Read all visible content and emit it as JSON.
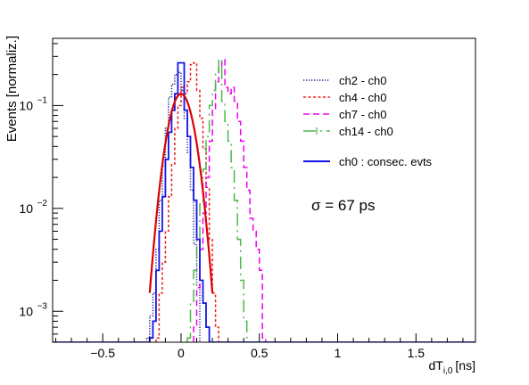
{
  "chart_data": {
    "type": "line",
    "xlabel": "dT",
    "xlabel_sub": "i,0",
    "xlabel_unit": "[ns]",
    "ylabel": "Events [normaliz.]",
    "xlim": [
      -0.82,
      1.88
    ],
    "ylim": [
      0.0005,
      0.45
    ],
    "yscale": "log",
    "x_ticks": [
      -0.5,
      0,
      0.5,
      1,
      1.5
    ],
    "x_tick_labels": [
      "−0.5",
      "0",
      "0.5",
      "1",
      "1.5"
    ],
    "y_ticks": [
      0.001,
      0.01,
      0.1
    ],
    "y_tick_labels": [
      {
        "base": "10",
        "exp": "−3"
      },
      {
        "base": "10",
        "exp": "−2"
      },
      {
        "base": "10",
        "exp": "−1"
      }
    ],
    "grid": false,
    "legend_position": "top-right",
    "annotation": "σ = 67 ps",
    "series": [
      {
        "name": "ch2 - ch0",
        "color": "#1a1a8c",
        "dash": "1.2,1.8",
        "style": "step",
        "bin_width": 0.02,
        "bins": [
          [
            -0.22,
            0.00055
          ],
          [
            -0.2,
            0.0009
          ],
          [
            -0.18,
            0.0015
          ],
          [
            -0.16,
            0.004
          ],
          [
            -0.14,
            0.012
          ],
          [
            -0.12,
            0.026
          ],
          [
            -0.1,
            0.06
          ],
          [
            -0.08,
            0.12
          ],
          [
            -0.06,
            0.16
          ],
          [
            -0.04,
            0.2
          ],
          [
            -0.02,
            0.21
          ],
          [
            0.0,
            0.14
          ],
          [
            0.02,
            0.075
          ],
          [
            0.04,
            0.035
          ],
          [
            0.06,
            0.015
          ],
          [
            0.08,
            0.0045
          ],
          [
            0.1,
            0.0018
          ]
        ]
      },
      {
        "name": "ch4 - ch0",
        "color": "#ee1b1b",
        "dash": "3,2.5",
        "style": "step",
        "bin_width": 0.02,
        "bins": [
          [
            -0.16,
            0.00055
          ],
          [
            -0.14,
            0.0015
          ],
          [
            -0.12,
            0.003
          ],
          [
            -0.1,
            0.006
          ],
          [
            -0.08,
            0.013
          ],
          [
            -0.06,
            0.027
          ],
          [
            -0.04,
            0.06
          ],
          [
            -0.02,
            0.1
          ],
          [
            0.0,
            0.15
          ],
          [
            0.02,
            0.13
          ],
          [
            0.04,
            0.17
          ],
          [
            0.06,
            0.25
          ],
          [
            0.08,
            0.26
          ],
          [
            0.1,
            0.14
          ],
          [
            0.12,
            0.075
          ],
          [
            0.14,
            0.038
          ],
          [
            0.16,
            0.016
          ],
          [
            0.18,
            0.005
          ],
          [
            0.2,
            0.0015
          ],
          [
            0.22,
            0.0007
          ]
        ]
      },
      {
        "name": "ch7 - ch0",
        "color": "#ee00ee",
        "dash": "7,4",
        "style": "step",
        "bin_width": 0.02,
        "bins": [
          [
            0.08,
            0.0007
          ],
          [
            0.1,
            0.0017
          ],
          [
            0.12,
            0.004
          ],
          [
            0.14,
            0.009
          ],
          [
            0.16,
            0.02
          ],
          [
            0.18,
            0.045
          ],
          [
            0.2,
            0.09
          ],
          [
            0.22,
            0.17
          ],
          [
            0.24,
            0.24
          ],
          [
            0.26,
            0.28
          ],
          [
            0.28,
            0.15
          ],
          [
            0.3,
            0.13
          ],
          [
            0.32,
            0.15
          ],
          [
            0.34,
            0.11
          ],
          [
            0.36,
            0.07
          ],
          [
            0.38,
            0.045
          ],
          [
            0.4,
            0.025
          ],
          [
            0.42,
            0.015
          ],
          [
            0.44,
            0.008
          ],
          [
            0.46,
            0.006
          ],
          [
            0.48,
            0.004
          ],
          [
            0.5,
            0.0025
          ],
          [
            0.52,
            0.00055
          ]
        ]
      },
      {
        "name": "ch14 - ch0",
        "color": "#4bb84b",
        "dash": "14,5,2,5",
        "style": "step",
        "bin_width": 0.02,
        "bins": [
          [
            0.04,
            0.00055
          ],
          [
            0.06,
            0.0012
          ],
          [
            0.08,
            0.0025
          ],
          [
            0.1,
            0.005
          ],
          [
            0.12,
            0.011
          ],
          [
            0.14,
            0.024
          ],
          [
            0.16,
            0.05
          ],
          [
            0.18,
            0.1
          ],
          [
            0.2,
            0.14
          ],
          [
            0.22,
            0.21
          ],
          [
            0.24,
            0.28
          ],
          [
            0.26,
            0.11
          ],
          [
            0.28,
            0.07
          ],
          [
            0.3,
            0.045
          ],
          [
            0.32,
            0.025
          ],
          [
            0.34,
            0.012
          ],
          [
            0.36,
            0.005
          ],
          [
            0.38,
            0.002
          ],
          [
            0.4,
            0.0008
          ]
        ]
      },
      {
        "name": "ch0 : consec. evts",
        "color": "#1313e6",
        "dash": "",
        "style": "step",
        "bin_width": 0.02,
        "bins": [
          [
            -0.82,
            0.0005
          ],
          [
            -0.2,
            0.00055
          ],
          [
            -0.18,
            0.0008
          ],
          [
            -0.16,
            0.0025
          ],
          [
            -0.14,
            0.006
          ],
          [
            -0.12,
            0.013
          ],
          [
            -0.1,
            0.03
          ],
          [
            -0.08,
            0.055
          ],
          [
            -0.06,
            0.09
          ],
          [
            -0.04,
            0.13
          ],
          [
            -0.02,
            0.26
          ],
          [
            0.0,
            0.26
          ],
          [
            0.02,
            0.09
          ],
          [
            0.04,
            0.05
          ],
          [
            0.06,
            0.025
          ],
          [
            0.08,
            0.012
          ],
          [
            0.1,
            0.005
          ],
          [
            0.12,
            0.002
          ],
          [
            0.14,
            0.0012
          ],
          [
            0.16,
            0.0007
          ],
          [
            0.18,
            0.0005
          ],
          [
            1.88,
            0.0005
          ]
        ]
      }
    ],
    "fit": {
      "color": "#dd0000",
      "function": "gaussian",
      "mean": 0.0,
      "sigma": 0.067,
      "amplitude": 0.13,
      "range": [
        -0.2,
        0.2
      ]
    }
  }
}
